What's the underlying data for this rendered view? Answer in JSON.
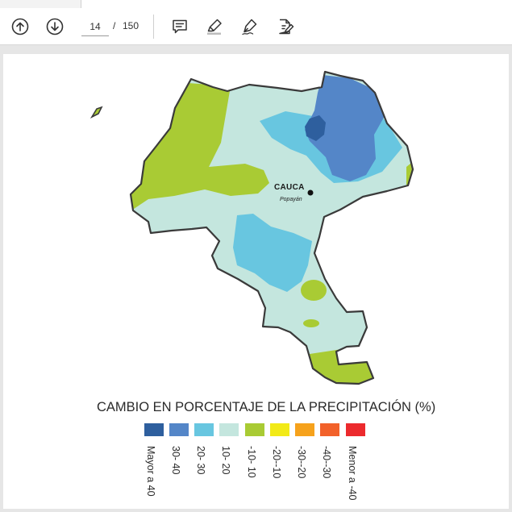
{
  "toolbar": {
    "current_page": "14",
    "page_separator": "/",
    "total_pages": "150",
    "icons": [
      "arrow-up-circle-icon",
      "arrow-down-circle-icon",
      "comment-icon",
      "highlighter-icon",
      "pen-sign-icon",
      "edit-document-icon"
    ]
  },
  "map": {
    "department_label": "CAUCA",
    "city_label": "Popayán"
  },
  "legend": {
    "title": "CAMBIO EN PORCENTAJE DE LA PRECIPITACIÓN (%)",
    "items": [
      {
        "label": "Mayor a 40",
        "color": "#2e5f9e"
      },
      {
        "label": "30- 40",
        "color": "#5486c8"
      },
      {
        "label": "20- 30",
        "color": "#68c6e0"
      },
      {
        "label": "10- 20",
        "color": "#c4e6de"
      },
      {
        "label": "-10- 10",
        "color": "#a9cb34"
      },
      {
        "label": "-20--10",
        "color": "#f2ea17"
      },
      {
        "label": "-30--20",
        "color": "#f6a21c"
      },
      {
        "label": "-40--30",
        "color": "#f2612a"
      },
      {
        "label": "Menor a -40",
        "color": "#ec2a2d"
      }
    ]
  }
}
